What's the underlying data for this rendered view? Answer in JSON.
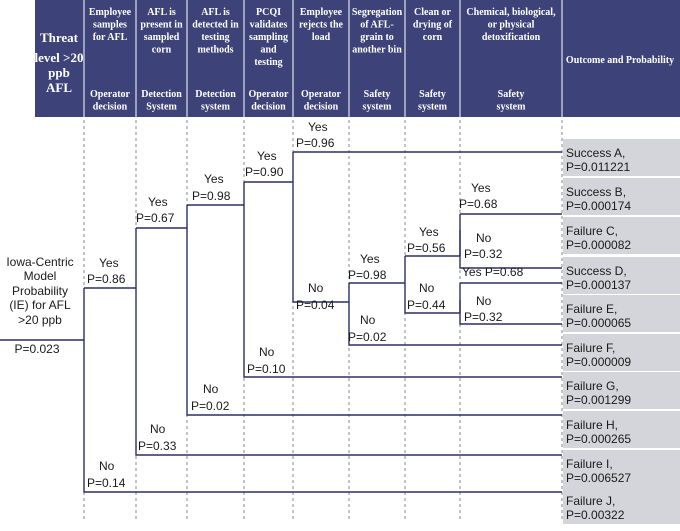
{
  "colors": {
    "header_bg": "#3d4379",
    "outcome_bg": "#d4d5da",
    "line": "#2b2f63"
  },
  "header": {
    "first": [
      "Threat",
      "level >20",
      "ppb",
      "AFL"
    ],
    "columns": [
      {
        "title": [
          "Employee",
          "samples",
          "for AFL"
        ],
        "sub": [
          "Operator",
          "decision"
        ]
      },
      {
        "title": [
          "AFL is",
          "present in",
          "sampled",
          "corn"
        ],
        "sub": [
          "Detection",
          "System"
        ]
      },
      {
        "title": [
          "AFL is",
          "detected in",
          "testing",
          "methods"
        ],
        "sub": [
          "Detection",
          "system"
        ]
      },
      {
        "title": [
          "PCQI",
          "validates",
          "sampling",
          "and",
          "testing"
        ],
        "sub": [
          "Operator",
          "decision"
        ]
      },
      {
        "title": [
          "Employee",
          "rejects the",
          "load"
        ],
        "sub": [
          "Operator",
          "decision"
        ]
      },
      {
        "title": [
          "Segregation",
          "of AFL-",
          "grain to",
          "another bin"
        ],
        "sub": [
          "Safety",
          "system"
        ]
      },
      {
        "title": [
          "Clean or",
          "drying of",
          "corn"
        ],
        "sub": [
          "Safety",
          "system"
        ]
      },
      {
        "title": [
          "Chemical, biological,",
          "or physical",
          "detoxification"
        ],
        "sub": [
          "Safety",
          "system"
        ]
      }
    ],
    "outcome_title": "Outcome and Probability"
  },
  "initiating": {
    "lines": [
      "Iowa-Centric",
      "Model",
      "Probability",
      "(IE) for AFL",
      ">20 ppb"
    ],
    "probability": "P=0.023"
  },
  "branches": [
    {
      "yes": "Yes",
      "yes_p": "P=0.86",
      "no": "No",
      "no_p": "P=0.14"
    },
    {
      "yes": "Yes",
      "yes_p": "P=0.67",
      "no": "No",
      "no_p": "P=0.33"
    },
    {
      "yes": "Yes",
      "yes_p": "P=0.98",
      "no": "No",
      "no_p": "P=0.02"
    },
    {
      "yes": "Yes",
      "yes_p": "P=0.90",
      "no": "No",
      "no_p": "P=0.10"
    },
    {
      "yes": "Yes",
      "yes_p": "P=0.96",
      "no": "No",
      "no_p": "P=0.04"
    },
    {
      "yes": "Yes",
      "yes_p": "P=0.98",
      "no": "No",
      "no_p": "P=0.02"
    },
    {
      "yes": "Yes",
      "yes_p": "P=0.56",
      "no": "No",
      "no_p": "P=0.44"
    },
    {
      "yes": "Yes",
      "yes_p": "P=0.68",
      "no": "No",
      "no_p": "P=0.32"
    },
    {
      "yes": "Yes",
      "yes_p": "P=0.68",
      "no": "No",
      "no_p": "P=0.32"
    }
  ],
  "outcomes": [
    {
      "name": "Success A,",
      "prob": "P=0.011221"
    },
    {
      "name": "Success B,",
      "prob": "P=0.000174"
    },
    {
      "name": "Failure C,",
      "prob": "P=0.000082"
    },
    {
      "name": "Success D,",
      "prob": "P=0.000137"
    },
    {
      "name": "Failure E,",
      "prob": "P=0.000065"
    },
    {
      "name": "Failure F,",
      "prob": "P=0.000009"
    },
    {
      "name": "Failure G,",
      "prob": "P=0.001299"
    },
    {
      "name": "Failure H,",
      "prob": "P=0.000265"
    },
    {
      "name": "Failure I,",
      "prob": "P=0.006527"
    },
    {
      "name": "Failure J,",
      "prob": "P=0.00322"
    }
  ]
}
